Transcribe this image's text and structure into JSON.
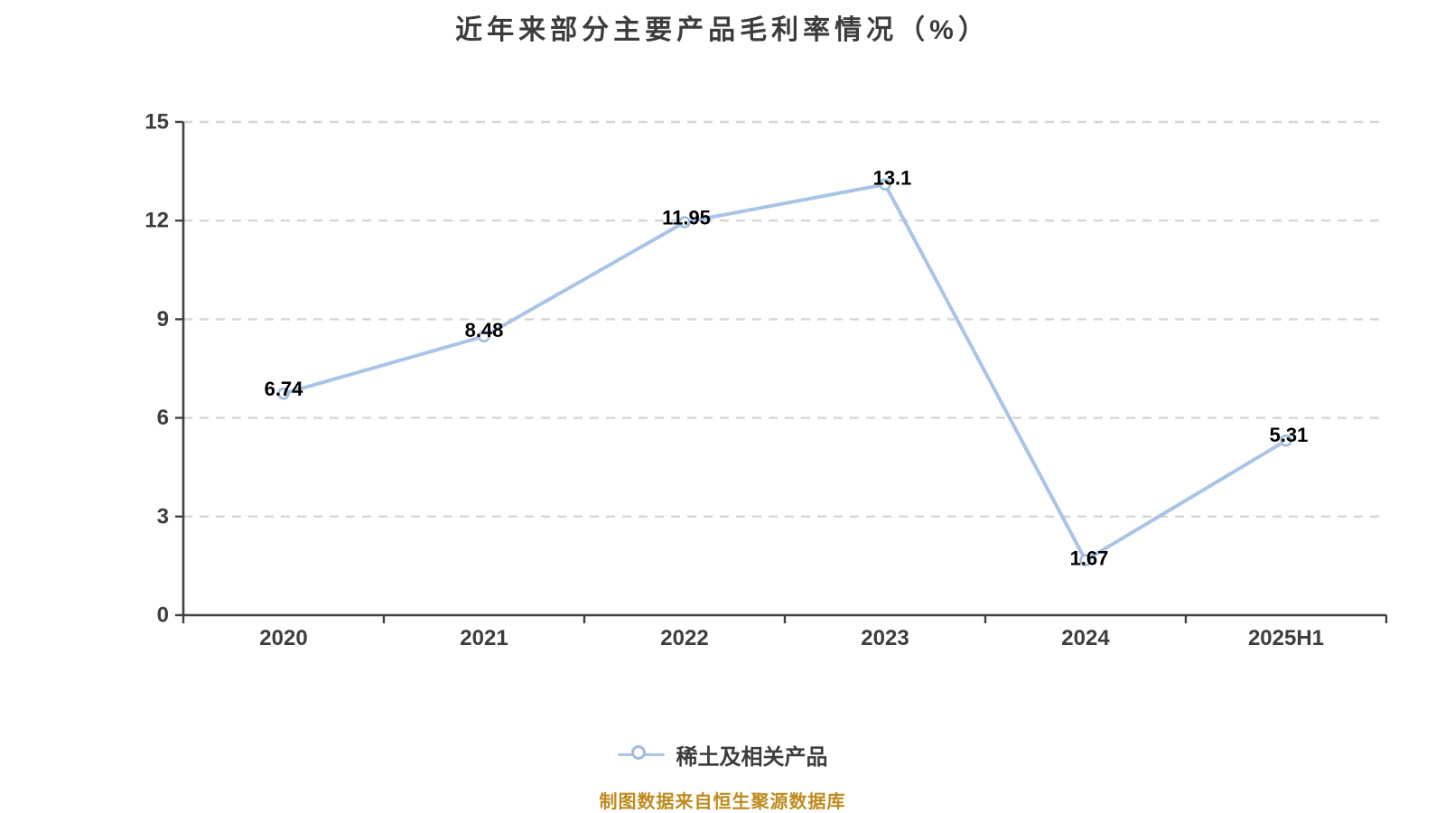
{
  "chart_data": {
    "type": "line",
    "title": "近年来部分主要产品毛利率情况（%）",
    "categories": [
      "2020",
      "2021",
      "2022",
      "2023",
      "2024",
      "2025H1"
    ],
    "series": [
      {
        "name": "稀土及相关产品",
        "values": [
          6.74,
          8.48,
          11.95,
          13.1,
          1.67,
          5.31
        ],
        "data_labels": [
          "6.74",
          "8.48",
          "11.95",
          "13.1",
          "1.67",
          "5.31"
        ]
      }
    ],
    "xlabel": "",
    "ylabel": "",
    "ylim": [
      0,
      15
    ],
    "yticks": [
      0,
      3,
      6,
      9,
      12,
      15
    ],
    "grid": "horizontal-dashed",
    "legend_position": "bottom",
    "colors": {
      "line": "#a9c4e6",
      "marker_fill": "#ffffff",
      "marker_stroke": "#a0bddf",
      "grid": "#d6d6d6",
      "axis": "#404040",
      "tick_label": "#3d3d3d",
      "data_label": "#000000",
      "title": "#3c3c3c",
      "source": "#bf8b1e"
    }
  },
  "source_note": "制图数据来自恒生聚源数据库"
}
